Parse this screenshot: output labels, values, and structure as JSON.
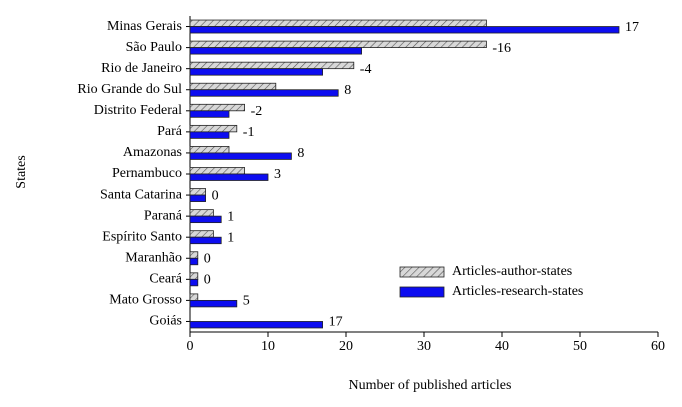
{
  "chart_data": {
    "type": "bar",
    "orientation": "horizontal",
    "x_label": "Number of published articles",
    "y_label": "States",
    "categories": [
      "Minas Gerais",
      "São Paulo",
      "Rio de Janeiro",
      "Rio Grande do Sul",
      "Distrito Federal",
      "Pará",
      "Amazonas",
      "Pernambuco",
      "Santa Catarina",
      "Paraná",
      "Espírito Santo",
      "Maranhão",
      "Ceará",
      "Mato Grosso",
      "Goiás"
    ],
    "series": [
      {
        "name": "Articles-author-states",
        "color": "#c8c8c8",
        "hatch": true,
        "values": [
          38,
          38,
          21,
          11,
          7,
          6,
          5,
          7,
          2,
          3,
          3,
          1,
          1,
          1,
          0
        ]
      },
      {
        "name": "Articles-research-states",
        "color": "#0d0df0",
        "hatch": false,
        "values": [
          55,
          22,
          17,
          19,
          5,
          5,
          13,
          10,
          2,
          4,
          4,
          1,
          1,
          6,
          17
        ]
      }
    ],
    "differences": [
      17,
      -16,
      -4,
      8,
      -2,
      -1,
      8,
      3,
      0,
      1,
      1,
      0,
      0,
      5,
      17
    ],
    "xlim": [
      0,
      60
    ],
    "xticks": [
      0,
      10,
      20,
      30,
      40,
      50,
      60
    ],
    "legend": "lower right"
  }
}
